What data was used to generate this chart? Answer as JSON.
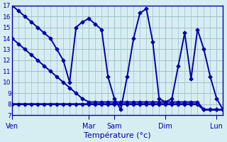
{
  "title": "",
  "xlabel": "Température (°c)",
  "ylabel": "",
  "bg_color": "#d6eef2",
  "grid_color": "#a0c0c8",
  "line_color": "#0000aa",
  "ylim": [
    7,
    17
  ],
  "yticks": [
    7,
    8,
    9,
    10,
    11,
    12,
    13,
    14,
    15,
    16,
    17
  ],
  "day_labels": [
    "Ven",
    "Mar",
    "Sam",
    "Dim",
    "Lun"
  ],
  "day_positions": [
    0,
    12,
    16,
    24,
    32
  ],
  "series1_x": [
    0,
    1,
    2,
    3,
    4,
    5,
    6,
    7,
    8,
    9,
    10,
    11,
    12,
    13,
    14,
    15,
    16,
    17,
    18,
    19,
    20,
    21,
    22,
    23,
    24,
    25,
    26,
    27,
    28,
    29,
    30,
    31,
    32,
    33
  ],
  "series1_y": [
    17,
    16.5,
    16,
    15.5,
    15,
    14.5,
    14,
    13,
    12,
    10,
    15,
    15.5,
    15.8,
    15.3,
    14.8,
    10.5,
    8.5,
    7.5,
    10.5,
    14,
    16.3,
    16.7,
    13.7,
    8.5,
    8.2,
    8.5,
    11.5,
    14.5,
    10.3,
    14.8,
    13,
    10.5,
    8.5,
    7.5
  ],
  "series2_x": [
    0,
    1,
    2,
    3,
    4,
    5,
    6,
    7,
    8,
    9,
    10,
    11,
    12,
    13,
    14,
    15,
    16,
    17,
    18,
    19,
    20,
    21,
    22,
    23,
    24,
    25,
    26,
    27,
    28,
    29,
    30,
    31,
    32,
    33
  ],
  "series2_y": [
    14,
    13.5,
    13,
    12.5,
    12,
    11.5,
    11,
    10.5,
    10,
    9.5,
    9,
    8.5,
    8.2,
    8.2,
    8.2,
    8.2,
    8.2,
    8.2,
    8.2,
    8.2,
    8.2,
    8.2,
    8.2,
    8.2,
    8.2,
    8.2,
    8.2,
    8.2,
    8.2,
    8.2,
    7.5,
    7.5,
    7.5,
    7.5
  ],
  "series3_x": [
    0,
    1,
    2,
    3,
    4,
    5,
    6,
    7,
    8,
    9,
    10,
    11,
    12,
    13,
    14,
    15,
    16,
    17,
    18,
    19,
    20,
    21,
    22,
    23,
    24,
    25,
    26,
    27,
    28,
    29,
    30,
    31,
    32,
    33
  ],
  "series3_y": [
    8.0,
    8.0,
    8.0,
    8.0,
    8.0,
    8.0,
    8.0,
    8.0,
    8.0,
    8.0,
    8.0,
    8.0,
    8.0,
    8.0,
    8.0,
    8.0,
    8.0,
    8.0,
    8.0,
    8.0,
    8.0,
    8.0,
    8.0,
    8.0,
    8.0,
    8.0,
    8.0,
    8.0,
    8.0,
    8.0,
    7.5,
    7.5,
    7.5,
    7.5
  ],
  "xlim": [
    0,
    33
  ],
  "marker": "D",
  "marker_size": 2.5,
  "linewidth": 1.4,
  "linewidth_thick": 2.0
}
